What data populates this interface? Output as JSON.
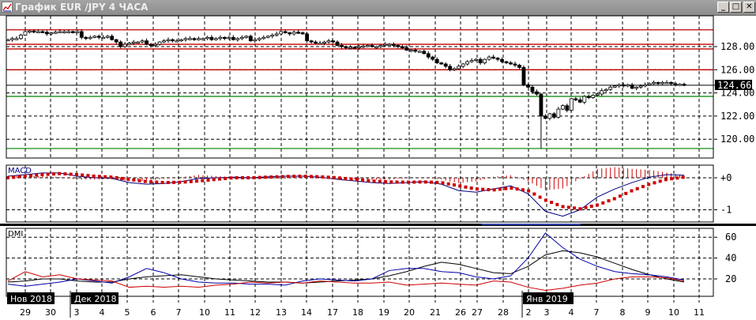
{
  "window": {
    "title": "График EUR /JPY  4 ЧАСА",
    "buttons": {
      "minimize": "_",
      "maximize": "□",
      "close": "✕"
    },
    "icon": "chart-icon"
  },
  "colors": {
    "candle": "#000000",
    "resistance": "#c00000",
    "support": "#008000",
    "macd": "#000080",
    "signal": "#cc0000",
    "adx": "#000000",
    "plus_di": "#0000aa",
    "minus_di": "#cc0000",
    "current_price_bg": "#000000"
  },
  "chart_data": [
    {
      "type": "candlestick",
      "symbol": "EUR/JPY",
      "timeframe": "4 ЧАСА",
      "y_ticks": [
        "128.00",
        "126.00",
        "124.00",
        "122.00",
        "120.00"
      ],
      "ylim": [
        118.6,
        130.4
      ],
      "current_price": "124.66",
      "resistance_levels": [
        129.45,
        128.2,
        127.8,
        126.0
      ],
      "support_levels": [
        123.7,
        119.2
      ],
      "current_price_line": 124.66,
      "closes": [
        128.6,
        128.7,
        128.7,
        129.0,
        129.3,
        129.35,
        129.3,
        129.3,
        129.25,
        129.1,
        129.2,
        129.25,
        129.3,
        129.3,
        129.3,
        129.25,
        129.3,
        128.8,
        128.7,
        128.8,
        128.9,
        128.8,
        128.8,
        128.9,
        128.6,
        128.4,
        128.0,
        128.2,
        128.3,
        128.4,
        128.4,
        128.5,
        128.2,
        128.1,
        128.2,
        128.4,
        128.5,
        128.6,
        128.5,
        128.5,
        128.6,
        128.7,
        128.7,
        128.6,
        128.7,
        128.7,
        128.8,
        128.6,
        128.7,
        128.8,
        128.7,
        128.8,
        128.6,
        128.7,
        128.8,
        128.9,
        128.5,
        128.6,
        128.7,
        128.8,
        128.9,
        129.0,
        129.1,
        129.3,
        129.2,
        129.1,
        129.25,
        129.2,
        129.1,
        128.5,
        128.4,
        128.3,
        128.3,
        128.4,
        128.5,
        128.4,
        128.1,
        128.0,
        127.9,
        127.95,
        127.9,
        128.0,
        128.05,
        128.1,
        128.0,
        128.0,
        128.1,
        128.2,
        128.2,
        128.1,
        128.0,
        127.9,
        127.7,
        127.7,
        127.6,
        127.6,
        127.4,
        127.1,
        126.9,
        126.6,
        126.5,
        126.3,
        126.0,
        126.1,
        126.3,
        126.5,
        126.7,
        126.8,
        126.9,
        126.6,
        126.9,
        127.1,
        127.0,
        126.9,
        126.7,
        126.6,
        126.5,
        126.4,
        126.2,
        124.7,
        124.5,
        124.1,
        123.9,
        122.0,
        121.8,
        122.2,
        121.9,
        122.6,
        122.9,
        122.5,
        123.5,
        123.4,
        123.2,
        123.7,
        123.6,
        123.8,
        123.9,
        124.2,
        124.3,
        124.5,
        124.6,
        124.7,
        124.6,
        124.7,
        124.4,
        124.5,
        124.6,
        124.7,
        124.8,
        124.9,
        124.8,
        124.9,
        124.9,
        124.8,
        124.7,
        124.75,
        124.66
      ],
      "spike_low": 119.2
    },
    {
      "type": "line",
      "title": "MACD",
      "y_ticks": [
        "+0",
        "-1"
      ],
      "ylim": [
        -1.4,
        0.4
      ],
      "series": [
        {
          "key": "macd",
          "values": [
            0.05,
            0.1,
            0.15,
            0.15,
            0.05,
            0.0,
            -0.02,
            -0.15,
            -0.2,
            -0.18,
            -0.12,
            -0.02,
            0.0,
            0.02,
            0.0,
            0.03,
            0.05,
            0.05,
            0.02,
            -0.05,
            -0.1,
            -0.15,
            -0.18,
            -0.15,
            -0.12,
            -0.2,
            -0.4,
            -0.45,
            -0.35,
            -0.25,
            -0.5,
            -1.05,
            -1.2,
            -1.0,
            -0.6,
            -0.35,
            -0.15,
            0.02,
            0.1,
            0.08
          ]
        },
        {
          "key": "signal",
          "values": [
            0.0,
            0.05,
            0.1,
            0.13,
            0.1,
            0.05,
            0.02,
            -0.05,
            -0.12,
            -0.15,
            -0.14,
            -0.1,
            -0.05,
            0.0,
            0.0,
            0.02,
            0.04,
            0.05,
            0.03,
            0.0,
            -0.05,
            -0.1,
            -0.13,
            -0.14,
            -0.13,
            -0.15,
            -0.25,
            -0.35,
            -0.38,
            -0.32,
            -0.4,
            -0.7,
            -0.9,
            -0.97,
            -0.85,
            -0.65,
            -0.4,
            -0.2,
            -0.05,
            0.02
          ]
        }
      ]
    },
    {
      "type": "line",
      "title": "DMI",
      "y_ticks": [
        "60",
        "40",
        "20"
      ],
      "ylim": [
        4.5,
        68
      ],
      "series": [
        {
          "key": "adx",
          "values": [
            17,
            18,
            20,
            20,
            18,
            17,
            17,
            20,
            22,
            23,
            24,
            22,
            20,
            19,
            18,
            17,
            17,
            16,
            17,
            18,
            19,
            20,
            23,
            27,
            32,
            36,
            34,
            30,
            26,
            25,
            32,
            43,
            47,
            45,
            41,
            35,
            29,
            24,
            20,
            17
          ]
        },
        {
          "key": "plus_di",
          "values": [
            15,
            13,
            15,
            17,
            20,
            18,
            16,
            22,
            30,
            26,
            20,
            17,
            16,
            16,
            15,
            15,
            14,
            18,
            20,
            19,
            18,
            20,
            28,
            30,
            30,
            27,
            26,
            22,
            20,
            23,
            40,
            64,
            50,
            39,
            32,
            27,
            25,
            24,
            22,
            19
          ]
        },
        {
          "key": "minus_di",
          "values": [
            18,
            27,
            22,
            24,
            20,
            19,
            18,
            12,
            13,
            12,
            13,
            12,
            14,
            15,
            17,
            16,
            17,
            16,
            18,
            17,
            16,
            16,
            17,
            14,
            15,
            16,
            15,
            14,
            18,
            17,
            12,
            9,
            11,
            14,
            16,
            20,
            22,
            22,
            21,
            18
          ]
        }
      ]
    }
  ],
  "x_axis": {
    "day_labels": [
      "29",
      "30",
      "3",
      "4",
      "5",
      "6",
      "7",
      "10",
      "11",
      "12",
      "13",
      "14",
      "17",
      "18",
      "19",
      "20",
      "21",
      "26",
      "27",
      "28",
      "2",
      "3",
      "4",
      "7",
      "8",
      "9",
      "10",
      "11"
    ],
    "month_labels": [
      "Нов 2018",
      "Дек 2018",
      "Янв 2019"
    ]
  }
}
